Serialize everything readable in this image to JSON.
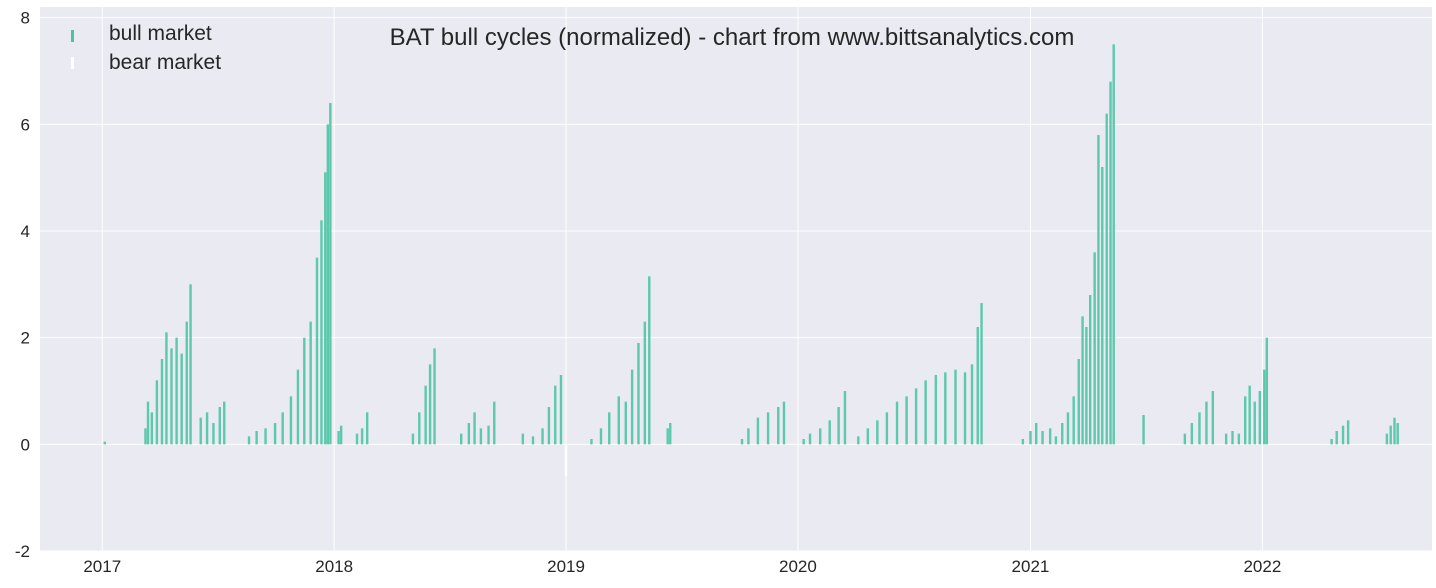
{
  "chart_data": {
    "type": "bar",
    "title": "BAT bull cycles (normalized)  - chart from www.bittsanalytics.com",
    "xlabel": "",
    "ylabel": "",
    "x_axis": "date",
    "xlim": [
      "2016-09-25",
      "2022-09-25"
    ],
    "ylim": [
      -2,
      8.2
    ],
    "yticks": [
      -2,
      0,
      2,
      4,
      6,
      8
    ],
    "xticks": [
      "2017",
      "2018",
      "2019",
      "2020",
      "2021",
      "2022"
    ],
    "grid": true,
    "legend_position": "top-left",
    "background_color": "#eaeaf2",
    "grid_color": "#ffffff",
    "series": [
      {
        "name": "bull market",
        "color": "#4cc4a4",
        "points": [
          [
            "2017-01-05",
            0.05
          ],
          [
            "2017-03-10",
            0.3
          ],
          [
            "2017-03-14",
            0.8
          ],
          [
            "2017-03-20",
            0.6
          ],
          [
            "2017-03-28",
            1.2
          ],
          [
            "2017-04-05",
            1.6
          ],
          [
            "2017-04-12",
            2.1
          ],
          [
            "2017-04-20",
            1.8
          ],
          [
            "2017-04-28",
            2.0
          ],
          [
            "2017-05-06",
            1.7
          ],
          [
            "2017-05-14",
            2.3
          ],
          [
            "2017-05-20",
            3.0
          ],
          [
            "2017-06-05",
            0.5
          ],
          [
            "2017-06-15",
            0.6
          ],
          [
            "2017-06-25",
            0.4
          ],
          [
            "2017-07-05",
            0.7
          ],
          [
            "2017-07-12",
            0.8
          ],
          [
            "2017-08-20",
            0.15
          ],
          [
            "2017-09-01",
            0.25
          ],
          [
            "2017-09-15",
            0.3
          ],
          [
            "2017-09-30",
            0.4
          ],
          [
            "2017-10-12",
            0.6
          ],
          [
            "2017-10-25",
            0.9
          ],
          [
            "2017-11-05",
            1.4
          ],
          [
            "2017-11-15",
            2.0
          ],
          [
            "2017-11-25",
            2.3
          ],
          [
            "2017-12-05",
            3.5
          ],
          [
            "2017-12-12",
            4.2
          ],
          [
            "2017-12-18",
            5.1
          ],
          [
            "2017-12-22",
            6.0
          ],
          [
            "2017-12-26",
            6.4
          ],
          [
            "2018-01-08",
            0.25
          ],
          [
            "2018-01-12",
            0.35
          ],
          [
            "2018-02-06",
            0.2
          ],
          [
            "2018-02-14",
            0.3
          ],
          [
            "2018-02-22",
            0.6
          ],
          [
            "2018-05-05",
            0.2
          ],
          [
            "2018-05-15",
            0.6
          ],
          [
            "2018-05-25",
            1.1
          ],
          [
            "2018-06-01",
            1.5
          ],
          [
            "2018-06-08",
            1.8
          ],
          [
            "2018-07-20",
            0.2
          ],
          [
            "2018-08-01",
            0.4
          ],
          [
            "2018-08-10",
            0.6
          ],
          [
            "2018-08-20",
            0.3
          ],
          [
            "2018-09-01",
            0.35
          ],
          [
            "2018-09-10",
            0.8
          ],
          [
            "2018-10-25",
            0.2
          ],
          [
            "2018-11-10",
            0.15
          ],
          [
            "2018-11-25",
            0.3
          ],
          [
            "2018-12-05",
            0.7
          ],
          [
            "2018-12-15",
            1.1
          ],
          [
            "2018-12-24",
            1.3
          ],
          [
            "2019-02-10",
            0.1
          ],
          [
            "2019-02-25",
            0.3
          ],
          [
            "2019-03-10",
            0.6
          ],
          [
            "2019-03-25",
            0.9
          ],
          [
            "2019-04-05",
            0.8
          ],
          [
            "2019-04-15",
            1.4
          ],
          [
            "2019-04-25",
            1.9
          ],
          [
            "2019-05-05",
            2.3
          ],
          [
            "2019-05-12",
            3.15
          ],
          [
            "2019-06-10",
            0.3
          ],
          [
            "2019-06-14",
            0.4
          ],
          [
            "2019-10-05",
            0.1
          ],
          [
            "2019-10-15",
            0.3
          ],
          [
            "2019-10-30",
            0.5
          ],
          [
            "2019-11-15",
            0.6
          ],
          [
            "2019-12-01",
            0.7
          ],
          [
            "2019-12-10",
            0.8
          ],
          [
            "2020-01-10",
            0.1
          ],
          [
            "2020-01-20",
            0.2
          ],
          [
            "2020-02-05",
            0.3
          ],
          [
            "2020-02-20",
            0.45
          ],
          [
            "2020-03-05",
            0.7
          ],
          [
            "2020-03-15",
            1.0
          ],
          [
            "2020-04-05",
            0.15
          ],
          [
            "2020-04-20",
            0.3
          ],
          [
            "2020-05-05",
            0.45
          ],
          [
            "2020-05-20",
            0.6
          ],
          [
            "2020-06-05",
            0.8
          ],
          [
            "2020-06-20",
            0.9
          ],
          [
            "2020-07-05",
            1.05
          ],
          [
            "2020-07-20",
            1.2
          ],
          [
            "2020-08-05",
            1.3
          ],
          [
            "2020-08-20",
            1.35
          ],
          [
            "2020-09-05",
            1.4
          ],
          [
            "2020-09-20",
            1.35
          ],
          [
            "2020-10-01",
            1.5
          ],
          [
            "2020-10-10",
            2.2
          ],
          [
            "2020-10-16",
            2.65
          ],
          [
            "2020-12-20",
            0.1
          ],
          [
            "2021-01-01",
            0.25
          ],
          [
            "2021-01-10",
            0.4
          ],
          [
            "2021-01-20",
            0.25
          ],
          [
            "2021-02-01",
            0.3
          ],
          [
            "2021-02-10",
            0.15
          ],
          [
            "2021-02-20",
            0.4
          ],
          [
            "2021-03-01",
            0.6
          ],
          [
            "2021-03-10",
            0.9
          ],
          [
            "2021-03-18",
            1.6
          ],
          [
            "2021-03-24",
            2.4
          ],
          [
            "2021-03-30",
            2.2
          ],
          [
            "2021-04-05",
            2.8
          ],
          [
            "2021-04-12",
            3.6
          ],
          [
            "2021-04-18",
            5.8
          ],
          [
            "2021-04-24",
            5.2
          ],
          [
            "2021-05-01",
            6.2
          ],
          [
            "2021-05-07",
            6.8
          ],
          [
            "2021-05-12",
            7.5
          ],
          [
            "2021-06-28",
            0.55
          ],
          [
            "2021-09-01",
            0.2
          ],
          [
            "2021-09-12",
            0.4
          ],
          [
            "2021-09-24",
            0.6
          ],
          [
            "2021-10-05",
            0.8
          ],
          [
            "2021-10-15",
            1.0
          ],
          [
            "2021-11-05",
            0.2
          ],
          [
            "2021-11-15",
            0.25
          ],
          [
            "2021-11-25",
            0.2
          ],
          [
            "2021-12-05",
            0.9
          ],
          [
            "2021-12-12",
            1.1
          ],
          [
            "2021-12-20",
            0.8
          ],
          [
            "2021-12-28",
            1.0
          ],
          [
            "2022-01-04",
            1.4
          ],
          [
            "2022-01-08",
            2.0
          ],
          [
            "2022-04-20",
            0.1
          ],
          [
            "2022-04-28",
            0.25
          ],
          [
            "2022-05-08",
            0.35
          ],
          [
            "2022-05-16",
            0.45
          ],
          [
            "2022-07-16",
            0.2
          ],
          [
            "2022-07-22",
            0.35
          ],
          [
            "2022-07-28",
            0.5
          ],
          [
            "2022-08-02",
            0.4
          ]
        ]
      },
      {
        "name": "bear market",
        "color": "#ffffff",
        "points": [
          [
            "2019-01-01",
            -0.6
          ]
        ]
      }
    ]
  }
}
